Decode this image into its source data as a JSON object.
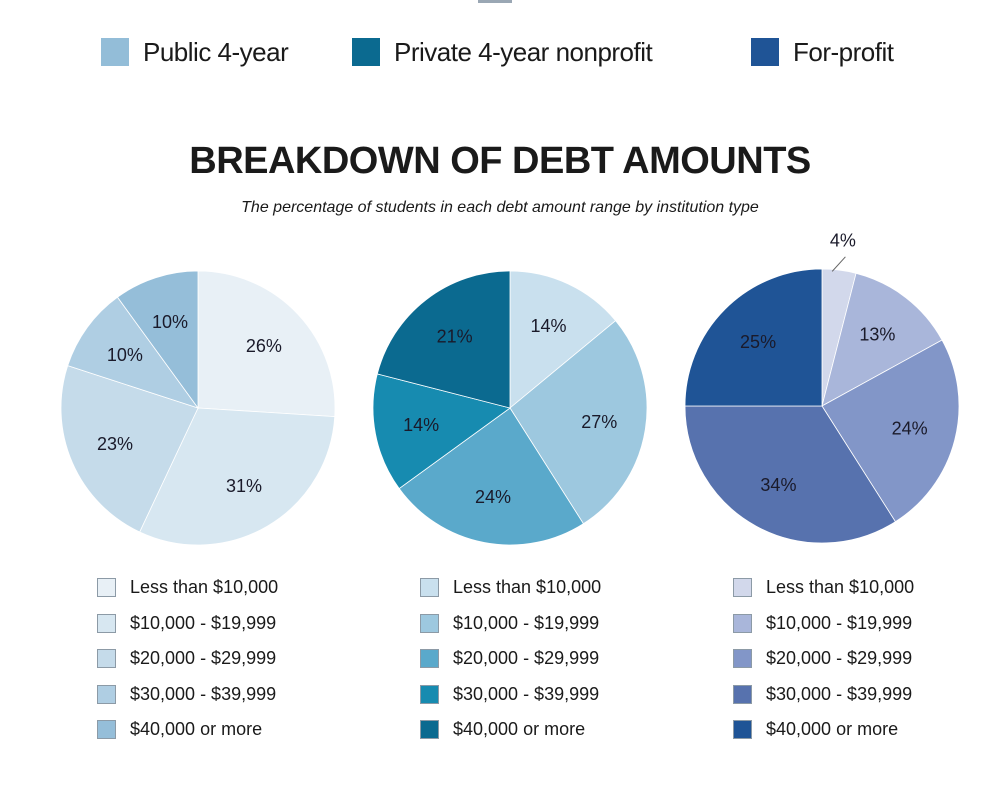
{
  "legend": [
    {
      "label": "Public 4-year",
      "color": "#93bdd8"
    },
    {
      "label": "Private 4-year nonprofit",
      "color": "#0b6a90"
    },
    {
      "label": "For-profit",
      "color": "#1f5496"
    }
  ],
  "title": "BREAKDOWN OF DEBT AMOUNTS",
  "subtitle": "The percentage of students in each debt amount range by institution type",
  "chart_data": [
    {
      "type": "pie",
      "institution": "Public 4-year",
      "categories": [
        "Less than $10,000",
        "$10,000 - $19,999",
        "$20,000 - $29,999",
        "$30,000 - $39,999",
        "$40,000 or more"
      ],
      "values": [
        26,
        31,
        23,
        10,
        10
      ],
      "labels": [
        "26%",
        "31%",
        "23%",
        "10%",
        "10%"
      ],
      "colors": [
        "#e8f0f6",
        "#d7e7f1",
        "#c5dbea",
        "#afcee3",
        "#95bed9"
      ]
    },
    {
      "type": "pie",
      "institution": "Private 4-year nonprofit",
      "categories": [
        "Less than $10,000",
        "$10,000 - $19,999",
        "$20,000 - $29,999",
        "$30,000 - $39,999",
        "$40,000 or more"
      ],
      "values": [
        14,
        27,
        24,
        14,
        21
      ],
      "labels": [
        "14%",
        "27%",
        "24%",
        "14%",
        "21%"
      ],
      "colors": [
        "#c9e0ee",
        "#9dc8df",
        "#5aa9cb",
        "#178bb0",
        "#0b6a90"
      ]
    },
    {
      "type": "pie",
      "institution": "For-profit",
      "categories": [
        "Less than $10,000",
        "$10,000 - $19,999",
        "$20,000 - $29,999",
        "$30,000 - $39,999",
        "$40,000 or more"
      ],
      "values": [
        4,
        13,
        24,
        34,
        25
      ],
      "labels": [
        "4%",
        "13%",
        "24%",
        "34%",
        "25%"
      ],
      "colors": [
        "#d2d8eb",
        "#a9b6da",
        "#8296c8",
        "#5772ae",
        "#1f5496"
      ]
    }
  ]
}
